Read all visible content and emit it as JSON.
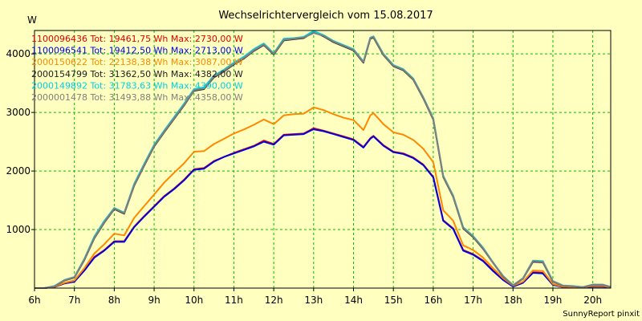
{
  "chart_data": {
    "type": "line",
    "title": "Wechselrichtervergleich vom 15.08.2017",
    "ylabel": "W",
    "xlabel": "",
    "footer": "SunnyReport pinxit",
    "xlim": [
      6,
      20.45
    ],
    "ylim": [
      0,
      4400
    ],
    "x_ticks": [
      {
        "value": 6,
        "label": "6h"
      },
      {
        "value": 7,
        "label": "7h"
      },
      {
        "value": 8,
        "label": "8h"
      },
      {
        "value": 9,
        "label": "9h"
      },
      {
        "value": 10,
        "label": "10h"
      },
      {
        "value": 11,
        "label": "11h"
      },
      {
        "value": 12,
        "label": "12h"
      },
      {
        "value": 13,
        "label": "13h"
      },
      {
        "value": 14,
        "label": "14h"
      },
      {
        "value": 15,
        "label": "15h"
      },
      {
        "value": 16,
        "label": "16h"
      },
      {
        "value": 17,
        "label": "17h"
      },
      {
        "value": 18,
        "label": "18h"
      },
      {
        "value": 19,
        "label": "19h"
      },
      {
        "value": 20,
        "label": "20h"
      }
    ],
    "y_ticks": [
      {
        "value": 1000,
        "label": "1000"
      },
      {
        "value": 2000,
        "label": "2000"
      },
      {
        "value": 3000,
        "label": "3000"
      },
      {
        "value": 4000,
        "label": "4000"
      }
    ],
    "grid": true,
    "legend_position": "top-left",
    "x": [
      6.0,
      6.25,
      6.5,
      6.75,
      7.0,
      7.25,
      7.5,
      7.75,
      8.0,
      8.25,
      8.5,
      8.75,
      9.0,
      9.25,
      9.5,
      9.75,
      10.0,
      10.25,
      10.5,
      10.75,
      11.0,
      11.25,
      11.5,
      11.75,
      12.0,
      12.25,
      12.5,
      12.75,
      12.92,
      13.0,
      13.25,
      13.5,
      13.75,
      14.0,
      14.25,
      14.42,
      14.5,
      14.75,
      15.0,
      15.25,
      15.5,
      15.75,
      16.0,
      16.25,
      16.5,
      16.75,
      17.0,
      17.25,
      17.5,
      17.75,
      18.0,
      18.25,
      18.5,
      18.75,
      19.0,
      19.25,
      19.5,
      19.75,
      20.0,
      20.25,
      20.45
    ],
    "series": [
      {
        "name": "1100096436",
        "legend": "1100096436 Tot: 19461,75 Wh Max: 2730,00 W",
        "color": "#E00000",
        "values": [
          0,
          0,
          20,
          80,
          110,
          300,
          530,
          650,
          800,
          800,
          1050,
          1230,
          1400,
          1570,
          1700,
          1850,
          2030,
          2050,
          2170,
          2240,
          2310,
          2370,
          2430,
          2520,
          2460,
          2620,
          2630,
          2640,
          2700,
          2730,
          2690,
          2640,
          2590,
          2540,
          2410,
          2560,
          2600,
          2440,
          2330,
          2300,
          2230,
          2110,
          1900,
          1160,
          1020,
          650,
          580,
          470,
          300,
          150,
          30,
          100,
          270,
          260,
          60,
          20,
          15,
          10,
          30,
          30,
          10
        ]
      },
      {
        "name": "1100096541",
        "legend": "1100096541 Tot: 19412,50 Wh Max: 2713,00 W",
        "color": "#0000E0",
        "values": [
          0,
          0,
          20,
          80,
          110,
          300,
          520,
          640,
          790,
          790,
          1040,
          1220,
          1390,
          1560,
          1690,
          1840,
          2020,
          2040,
          2160,
          2240,
          2300,
          2360,
          2420,
          2500,
          2450,
          2610,
          2620,
          2630,
          2690,
          2713,
          2680,
          2630,
          2580,
          2530,
          2400,
          2550,
          2590,
          2430,
          2320,
          2290,
          2220,
          2100,
          1890,
          1150,
          1010,
          640,
          570,
          460,
          290,
          140,
          25,
          90,
          260,
          250,
          55,
          20,
          15,
          10,
          25,
          25,
          8
        ]
      },
      {
        "name": "2000150622",
        "legend": "2000150622 Tot: 22138,38 Wh Max: 3087,00 W",
        "color": "#FF8800",
        "values": [
          0,
          0,
          25,
          90,
          130,
          340,
          590,
          750,
          930,
          900,
          1200,
          1400,
          1600,
          1800,
          1970,
          2130,
          2330,
          2340,
          2460,
          2550,
          2640,
          2710,
          2790,
          2880,
          2800,
          2950,
          2970,
          2980,
          3050,
          3087,
          3040,
          2970,
          2910,
          2870,
          2700,
          2950,
          2990,
          2800,
          2660,
          2620,
          2530,
          2380,
          2150,
          1330,
          1150,
          730,
          650,
          520,
          340,
          170,
          40,
          110,
          300,
          290,
          70,
          25,
          20,
          12,
          35,
          35,
          12
        ]
      },
      {
        "name": "2000154799",
        "legend": "2000154799 Tot: 31362,50 Wh Max: 4382,00 W",
        "color": "#202020",
        "values": [
          0,
          0,
          30,
          130,
          180,
          480,
          850,
          1120,
          1350,
          1270,
          1750,
          2090,
          2420,
          2660,
          2890,
          3120,
          3370,
          3400,
          3600,
          3700,
          3820,
          3920,
          4050,
          4150,
          3990,
          4230,
          4250,
          4270,
          4340,
          4382,
          4300,
          4200,
          4130,
          4060,
          3850,
          4260,
          4280,
          3980,
          3790,
          3720,
          3560,
          3240,
          2880,
          1900,
          1560,
          1020,
          870,
          670,
          430,
          200,
          45,
          160,
          450,
          440,
          110,
          40,
          30,
          15,
          55,
          55,
          18
        ]
      },
      {
        "name": "2000149892",
        "legend": "2000149892 Tot: 31783,63 Wh Max: 4390,00 W",
        "color": "#00D0E0",
        "values": [
          0,
          0,
          35,
          140,
          190,
          500,
          880,
          1150,
          1370,
          1290,
          1780,
          2120,
          2450,
          2690,
          2920,
          3150,
          3400,
          3430,
          3630,
          3730,
          3850,
          3950,
          4080,
          4180,
          4010,
          4260,
          4270,
          4290,
          4360,
          4390,
          4320,
          4220,
          4150,
          4080,
          3870,
          4280,
          4300,
          4000,
          3810,
          3740,
          3580,
          3260,
          2900,
          1920,
          1580,
          1040,
          890,
          690,
          440,
          210,
          50,
          170,
          470,
          460,
          120,
          45,
          35,
          18,
          60,
          60,
          20
        ]
      },
      {
        "name": "2000001478",
        "legend": "2000001478 Tot: 31493,88 Wh Max: 4358,00 W",
        "color": "#808080",
        "values": [
          0,
          0,
          30,
          135,
          185,
          490,
          860,
          1130,
          1360,
          1280,
          1760,
          2100,
          2430,
          2670,
          2900,
          3130,
          3380,
          3410,
          3610,
          3710,
          3830,
          3930,
          4060,
          4160,
          4000,
          4240,
          4260,
          4280,
          4330,
          4358,
          4310,
          4210,
          4140,
          4070,
          3860,
          4270,
          4290,
          3990,
          3800,
          3730,
          3570,
          3250,
          2890,
          1910,
          1570,
          1030,
          880,
          680,
          435,
          205,
          48,
          165,
          460,
          450,
          115,
          42,
          32,
          16,
          57,
          57,
          19
        ]
      }
    ]
  }
}
